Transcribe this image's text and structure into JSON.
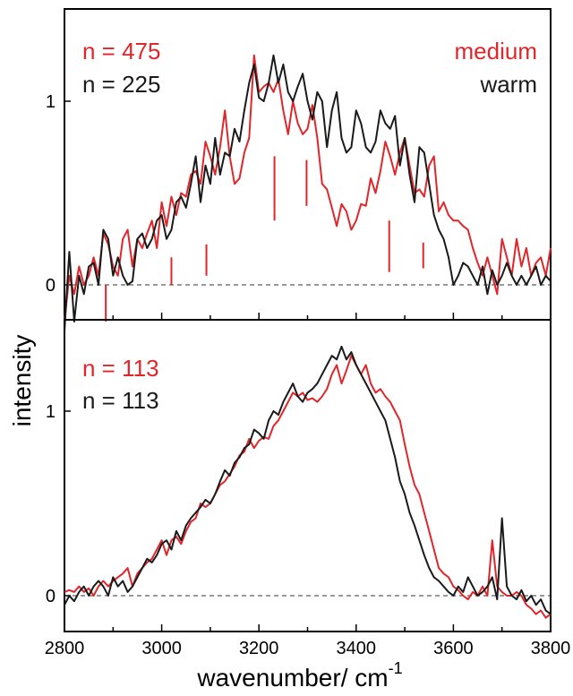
{
  "colors": {
    "red": "#e0262a",
    "black": "#1a1a1a"
  },
  "axes": {
    "xlabel": "wavenumber/ cm",
    "xlabel_superscript": "-1",
    "ylabel": "intensity",
    "xlim": [
      2800,
      3800
    ],
    "xticks": [
      "2800",
      "3000",
      "3200",
      "3400",
      "3600",
      "3800"
    ]
  },
  "top_panel": {
    "n_red": "n = 475",
    "n_black": "n = 225",
    "legend_red": "medium",
    "legend_black": "warm",
    "yticks": [
      "0",
      "1"
    ]
  },
  "bottom_panel": {
    "n_red": "n = 113",
    "n_black": "n = 113",
    "yticks": [
      "0",
      "1"
    ]
  },
  "chart_data": [
    {
      "type": "line",
      "panel": "top",
      "xlabel": "wavenumber/ cm-1",
      "ylabel": "intensity",
      "xlim": [
        2800,
        3800
      ],
      "ylim": [
        -0.2,
        1.5
      ],
      "x": [
        2800,
        2810,
        2820,
        2830,
        2840,
        2850,
        2860,
        2870,
        2880,
        2890,
        2900,
        2910,
        2920,
        2930,
        2940,
        2950,
        2960,
        2970,
        2980,
        2990,
        3000,
        3010,
        3020,
        3030,
        3040,
        3050,
        3060,
        3070,
        3080,
        3090,
        3100,
        3110,
        3120,
        3130,
        3140,
        3150,
        3160,
        3170,
        3180,
        3190,
        3200,
        3210,
        3220,
        3230,
        3240,
        3250,
        3260,
        3270,
        3280,
        3290,
        3300,
        3310,
        3320,
        3330,
        3340,
        3350,
        3360,
        3370,
        3380,
        3390,
        3400,
        3410,
        3420,
        3430,
        3440,
        3450,
        3460,
        3470,
        3480,
        3490,
        3500,
        3510,
        3520,
        3530,
        3540,
        3550,
        3560,
        3570,
        3580,
        3590,
        3600,
        3610,
        3620,
        3630,
        3640,
        3650,
        3660,
        3670,
        3680,
        3690,
        3700,
        3710,
        3720,
        3730,
        3740,
        3750,
        3760,
        3770,
        3780,
        3790,
        3800
      ],
      "series": [
        {
          "name": "medium",
          "color": "red",
          "values": [
            -0.2,
            0.05,
            -0.05,
            0.1,
            0.0,
            0.05,
            0.15,
            0.05,
            0.28,
            0.22,
            0.1,
            0.05,
            0.25,
            0.3,
            0.1,
            0.25,
            0.2,
            0.28,
            0.35,
            0.2,
            0.45,
            0.32,
            0.48,
            0.38,
            0.5,
            0.48,
            0.6,
            0.62,
            0.55,
            0.78,
            0.7,
            0.6,
            0.75,
            0.95,
            0.7,
            0.55,
            0.58,
            0.72,
            0.8,
            1.25,
            1.05,
            1.08,
            1.1,
            1.05,
            1.12,
            0.95,
            0.82,
            1.0,
            0.88,
            0.82,
            0.85,
            0.98,
            0.8,
            0.55,
            0.52,
            0.42,
            0.32,
            0.44,
            0.4,
            0.3,
            0.35,
            0.44,
            0.43,
            0.58,
            0.5,
            0.62,
            0.78,
            0.7,
            0.6,
            0.72,
            0.8,
            0.65,
            0.5,
            0.52,
            0.48,
            0.65,
            0.7,
            0.4,
            0.45,
            0.38,
            0.35,
            0.35,
            0.32,
            0.3,
            0.2,
            0.12,
            0.05,
            0.15,
            0.05,
            -0.05,
            0.25,
            0.15,
            0.05,
            0.25,
            0.1,
            0.2,
            0.05,
            0.12,
            0.15,
            0.05,
            0.2
          ]
        },
        {
          "name": "warm",
          "color": "black",
          "values": [
            -0.25,
            0.18,
            -0.2,
            0.05,
            -0.05,
            0.1,
            0.12,
            0.0,
            0.3,
            0.25,
            0.05,
            0.15,
            0.05,
            0.0,
            0.02,
            0.25,
            0.28,
            0.2,
            0.25,
            0.35,
            0.38,
            0.25,
            0.3,
            0.45,
            0.48,
            0.42,
            0.55,
            0.7,
            0.45,
            0.65,
            0.55,
            0.8,
            0.6,
            0.72,
            0.7,
            0.85,
            0.78,
            0.95,
            1.1,
            1.2,
            1.02,
            1.0,
            1.1,
            1.25,
            1.1,
            1.2,
            1.05,
            1.0,
            1.08,
            1.15,
            1.0,
            0.9,
            1.05,
            1.0,
            0.75,
            0.95,
            1.05,
            0.8,
            0.72,
            0.75,
            0.95,
            0.88,
            0.75,
            0.72,
            0.78,
            0.95,
            0.88,
            0.85,
            0.92,
            0.65,
            0.8,
            0.6,
            0.45,
            0.75,
            0.72,
            0.55,
            0.38,
            0.3,
            0.25,
            0.15,
            0.0,
            0.05,
            0.12,
            0.1,
            0.05,
            0.0,
            0.1,
            -0.05,
            0.08,
            0.0,
            0.05,
            0.12,
            0.05,
            0.0,
            0.05,
            0.0,
            0.05,
            0.1,
            0.0,
            0.05,
            0.02
          ]
        }
      ],
      "stick_markers": [
        {
          "x": 2885,
          "y_from": -0.2,
          "y_to": 0.0
        },
        {
          "x": 3020,
          "y_from": 0.0,
          "y_to": 0.15
        },
        {
          "x": 3092,
          "y_from": 0.05,
          "y_to": 0.22
        },
        {
          "x": 3232,
          "y_from": 0.35,
          "y_to": 0.7
        },
        {
          "x": 3298,
          "y_from": 0.43,
          "y_to": 0.68
        },
        {
          "x": 3468,
          "y_from": 0.07,
          "y_to": 0.35
        },
        {
          "x": 3538,
          "y_from": 0.09,
          "y_to": 0.23
        }
      ]
    },
    {
      "type": "line",
      "panel": "bottom",
      "xlabel": "wavenumber/ cm-1",
      "ylabel": "intensity",
      "xlim": [
        2800,
        3800
      ],
      "ylim": [
        -0.2,
        1.35
      ],
      "x": [
        2800,
        2810,
        2820,
        2830,
        2840,
        2850,
        2860,
        2870,
        2880,
        2890,
        2900,
        2910,
        2920,
        2930,
        2940,
        2950,
        2960,
        2970,
        2980,
        2990,
        3000,
        3010,
        3020,
        3030,
        3040,
        3050,
        3060,
        3070,
        3080,
        3090,
        3100,
        3110,
        3120,
        3130,
        3140,
        3150,
        3160,
        3170,
        3180,
        3190,
        3200,
        3210,
        3220,
        3230,
        3240,
        3250,
        3260,
        3270,
        3280,
        3290,
        3300,
        3310,
        3320,
        3330,
        3340,
        3350,
        3360,
        3370,
        3380,
        3390,
        3400,
        3410,
        3420,
        3430,
        3440,
        3450,
        3460,
        3470,
        3480,
        3490,
        3500,
        3510,
        3520,
        3530,
        3540,
        3550,
        3560,
        3570,
        3580,
        3590,
        3600,
        3610,
        3620,
        3630,
        3640,
        3650,
        3660,
        3670,
        3680,
        3690,
        3700,
        3710,
        3720,
        3730,
        3740,
        3750,
        3760,
        3770,
        3780,
        3790,
        3800
      ],
      "series": [
        {
          "name": "medium",
          "color": "red",
          "values": [
            0.02,
            0.03,
            0.02,
            0.05,
            0.02,
            0.04,
            0.0,
            0.05,
            0.08,
            0.05,
            0.08,
            0.1,
            0.12,
            0.15,
            0.05,
            0.12,
            0.15,
            0.18,
            0.2,
            0.25,
            0.3,
            0.22,
            0.3,
            0.32,
            0.28,
            0.35,
            0.4,
            0.42,
            0.5,
            0.48,
            0.5,
            0.55,
            0.6,
            0.62,
            0.66,
            0.7,
            0.76,
            0.78,
            0.85,
            0.8,
            0.84,
            0.86,
            0.85,
            0.92,
            0.95,
            1.0,
            1.05,
            1.1,
            1.08,
            1.1,
            1.06,
            1.07,
            1.05,
            1.08,
            1.12,
            1.2,
            1.25,
            1.15,
            1.22,
            1.3,
            1.25,
            1.2,
            1.25,
            1.15,
            1.1,
            1.12,
            1.08,
            1.05,
            1.0,
            0.95,
            0.82,
            0.7,
            0.6,
            0.55,
            0.45,
            0.35,
            0.25,
            0.15,
            0.12,
            0.1,
            0.05,
            0.03,
            0.0,
            -0.02,
            0.02,
            0.0,
            0.05,
            0.0,
            0.3,
            0.05,
            0.02,
            0.0,
            0.0,
            0.02,
            0.0,
            -0.05,
            -0.07,
            -0.1,
            -0.08,
            -0.12,
            -0.1
          ]
        },
        {
          "name": "warm",
          "color": "black",
          "values": [
            -0.05,
            0.0,
            -0.03,
            0.02,
            0.05,
            0.0,
            0.05,
            0.08,
            0.05,
            0.0,
            0.1,
            0.05,
            0.08,
            0.02,
            0.05,
            0.1,
            0.15,
            0.2,
            0.18,
            0.22,
            0.28,
            0.3,
            0.25,
            0.35,
            0.3,
            0.38,
            0.42,
            0.45,
            0.48,
            0.52,
            0.5,
            0.55,
            0.62,
            0.68,
            0.65,
            0.72,
            0.75,
            0.8,
            0.82,
            0.9,
            0.88,
            0.85,
            0.95,
            1.0,
            0.98,
            1.05,
            1.1,
            1.15,
            1.08,
            1.05,
            1.1,
            1.12,
            1.15,
            1.2,
            1.25,
            1.3,
            1.28,
            1.35,
            1.28,
            1.32,
            1.25,
            1.2,
            1.15,
            1.1,
            1.05,
            1.0,
            0.95,
            0.85,
            0.75,
            0.62,
            0.55,
            0.45,
            0.38,
            0.3,
            0.22,
            0.15,
            0.1,
            0.08,
            0.05,
            0.02,
            0.0,
            0.05,
            0.02,
            0.1,
            0.05,
            0.0,
            0.02,
            0.05,
            0.1,
            -0.02,
            0.42,
            0.05,
            0.0,
            -0.02,
            0.03,
            -0.03,
            0.0,
            -0.05,
            -0.02,
            -0.08,
            -0.1
          ]
        }
      ]
    }
  ]
}
